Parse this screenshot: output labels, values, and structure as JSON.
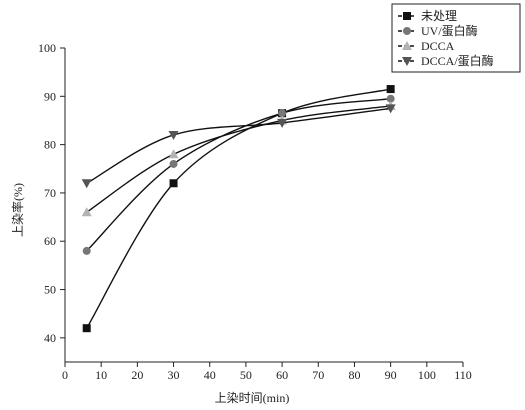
{
  "chart_data": {
    "type": "line",
    "title": "",
    "xlabel": "上染时间(min)",
    "ylabel": "上染率(%)",
    "xlim": [
      0,
      110
    ],
    "ylim": [
      35,
      100
    ],
    "xticks": [
      0,
      10,
      20,
      30,
      40,
      50,
      60,
      70,
      80,
      90,
      100,
      110
    ],
    "yticks": [
      40,
      50,
      60,
      70,
      80,
      90,
      100
    ],
    "grid": false,
    "legend_position": "top-right",
    "x": [
      6,
      30,
      60,
      90
    ],
    "series": [
      {
        "name": "未处理",
        "values": [
          42,
          72,
          86.5,
          91.5
        ],
        "marker": "square",
        "color": "#111111"
      },
      {
        "name": "UV/蛋白酶",
        "values": [
          58,
          76,
          86.5,
          89.5
        ],
        "marker": "circle",
        "color": "#777777"
      },
      {
        "name": "DCCA",
        "values": [
          66,
          78,
          85,
          88
        ],
        "marker": "triangle-up",
        "color": "#b3b3b3"
      },
      {
        "name": "DCCA/蛋白酶",
        "values": [
          72,
          82,
          84.5,
          87.5
        ],
        "marker": "triangle-down",
        "color": "#555555"
      }
    ]
  }
}
